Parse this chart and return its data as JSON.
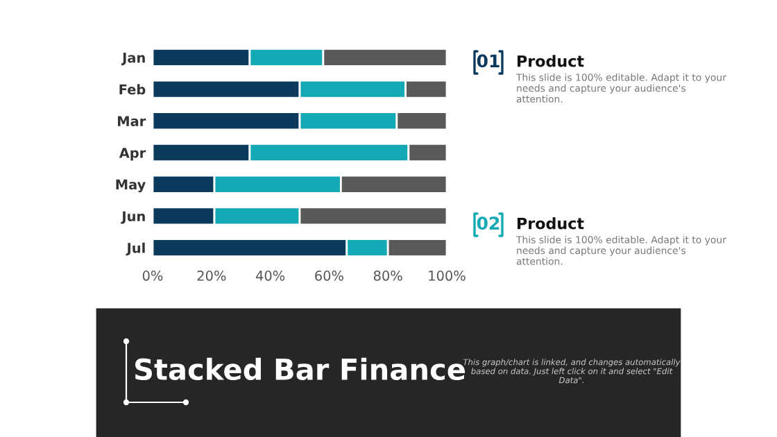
{
  "chart_data": {
    "type": "bar",
    "orientation": "horizontal",
    "stacked": true,
    "title": "Stacked Bar Finance",
    "categories": [
      "Jan",
      "Feb",
      "Mar",
      "Apr",
      "May",
      "Jun",
      "Jul"
    ],
    "series": [
      {
        "color": "#0b3a5c",
        "values": [
          33,
          50,
          50,
          33,
          21,
          21,
          66
        ]
      },
      {
        "color": "#14aab5",
        "values": [
          25,
          36,
          33,
          54,
          43,
          29,
          14
        ]
      },
      {
        "color": "#595959",
        "values": [
          42,
          14,
          17,
          13,
          36,
          50,
          20
        ]
      }
    ],
    "xlim": [
      0,
      100
    ],
    "xticks": [
      {
        "value": 0,
        "label": "0%"
      },
      {
        "value": 20,
        "label": "20%"
      },
      {
        "value": 40,
        "label": "40%"
      },
      {
        "value": 60,
        "label": "60%"
      },
      {
        "value": 80,
        "label": "80%"
      },
      {
        "value": 100,
        "label": "100%"
      }
    ],
    "grid": false,
    "legend": false,
    "annotations": [
      "01",
      "Product",
      "This slide is 100% editable. Adapt it to your needs and capture your audience's attention.",
      "02",
      "Product",
      "This slide is 100% editable. Adapt it to your needs and capture your audience's attention.",
      "This graph/chart is linked, and changes automatically based on data. Just left click on it and select \"Edit Data\"."
    ]
  }
}
